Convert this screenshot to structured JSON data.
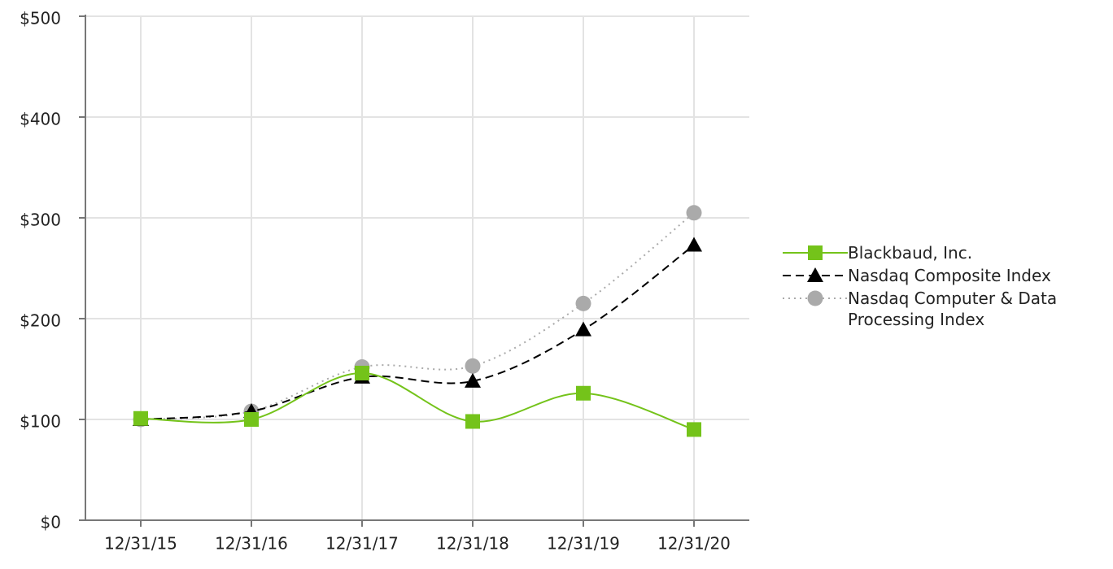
{
  "chart_data": {
    "type": "line",
    "categories": [
      "12/31/15",
      "12/31/16",
      "12/31/17",
      "12/31/18",
      "12/31/19",
      "12/31/20"
    ],
    "series": [
      {
        "name": "Blackbaud, Inc.",
        "color": "#74c31a",
        "marker": "square",
        "dash": "solid",
        "values": [
          101,
          100,
          146,
          98,
          126,
          90
        ]
      },
      {
        "name": "Nasdaq Composite Index",
        "color": "#000000",
        "marker": "triangle",
        "dash": "dashed",
        "values": [
          100,
          108,
          142,
          138,
          189,
          273
        ]
      },
      {
        "name": "Nasdaq Computer & Data Processing Index",
        "color": "#aaaaaa",
        "marker": "circle",
        "dash": "dotted",
        "values": [
          100,
          108,
          152,
          153,
          215,
          305
        ]
      }
    ],
    "ylim": [
      0,
      500
    ],
    "yticks": [
      {
        "value": 0,
        "label": "$0"
      },
      {
        "value": 100,
        "label": "$100"
      },
      {
        "value": 200,
        "label": "$200"
      },
      {
        "value": 300,
        "label": "$300"
      },
      {
        "value": 400,
        "label": "$400"
      },
      {
        "value": 500,
        "label": "$500"
      }
    ],
    "grid": true
  }
}
